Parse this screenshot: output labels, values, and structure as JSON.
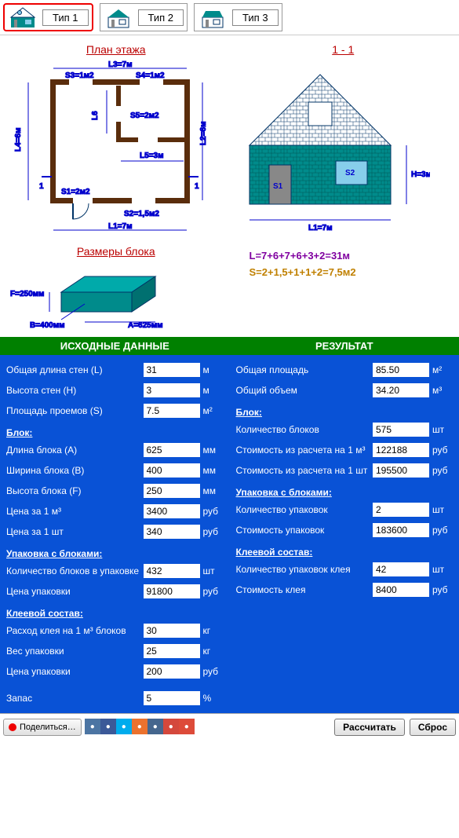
{
  "tabs": [
    {
      "label": "Тип 1",
      "active": true
    },
    {
      "label": "Тип 2",
      "active": false
    },
    {
      "label": "Тип 3",
      "active": false
    }
  ],
  "plan": {
    "title": "План этажа",
    "dims": {
      "L1": "L1=7м",
      "L2": "L2=6м",
      "L3": "L3=7м",
      "L4": "L4=6м",
      "L5": "L5=3м",
      "L6": "L6",
      "S1": "S1=2м2",
      "S2": "S2=1,5м2",
      "S3": "S3=1м2",
      "S4": "S4=1м2",
      "S5": "S5=2м2",
      "section": "1"
    }
  },
  "section": {
    "title": "1 - 1",
    "dims": {
      "L1": "L1=7м",
      "H": "H=3м",
      "S1": "S1",
      "S2": "S2"
    }
  },
  "block": {
    "title": "Размеры блока",
    "A": "A=625мм",
    "B": "B=400мм",
    "F": "F=250мм"
  },
  "formulas": {
    "L": "L=7+6+7+6+3+2=31м",
    "S": "S=2+1,5+1+1+2=7,5м2"
  },
  "input": {
    "title": "ИСХОДНЫЕ ДАННЫЕ",
    "rows": [
      {
        "label": "Общая длина стен (L)",
        "value": "31",
        "unit": "м"
      },
      {
        "label": "Высота стен (H)",
        "value": "3",
        "unit": "м"
      },
      {
        "label": "Площадь проемов (S)",
        "value": "7.5",
        "unit": "м²"
      }
    ],
    "block_head": "Блок:",
    "block_rows": [
      {
        "label": "Длина блока (A)",
        "value": "625",
        "unit": "мм"
      },
      {
        "label": "Ширина блока (B)",
        "value": "400",
        "unit": "мм"
      },
      {
        "label": "Высота блока (F)",
        "value": "250",
        "unit": "мм"
      },
      {
        "label": "Цена за 1 м³",
        "value": "3400",
        "unit": "руб"
      },
      {
        "label": "Цена за 1 шт",
        "value": "340",
        "unit": "руб"
      }
    ],
    "pack_head": "Упаковка с блоками:",
    "pack_rows": [
      {
        "label": "Количество блоков в упаковке",
        "value": "432",
        "unit": "шт"
      },
      {
        "label": "Цена упаковки",
        "value": "91800",
        "unit": "руб"
      }
    ],
    "glue_head": "Клеевой состав:",
    "glue_rows": [
      {
        "label": "Расход клея на 1 м³ блоков",
        "value": "30",
        "unit": "кг"
      },
      {
        "label": "Вес упаковки",
        "value": "25",
        "unit": "кг"
      },
      {
        "label": "Цена упаковки",
        "value": "200",
        "unit": "руб"
      }
    ],
    "reserve": {
      "label": "Запас",
      "value": "5",
      "unit": "%"
    }
  },
  "result": {
    "title": "РЕЗУЛЬТАТ",
    "rows": [
      {
        "label": "Общая площадь",
        "value": "85.50",
        "unit": "м²"
      },
      {
        "label": "Общий объем",
        "value": "34.20",
        "unit": "м³"
      }
    ],
    "block_head": "Блок:",
    "block_rows": [
      {
        "label": "Количество блоков",
        "value": "575",
        "unit": "шт"
      },
      {
        "label": "Стоимость из расчета на 1 м³",
        "value": "122188",
        "unit": "руб"
      },
      {
        "label": "Стоимость из расчета на 1 шт",
        "value": "195500",
        "unit": "руб"
      }
    ],
    "pack_head": "Упаковка с блоками:",
    "pack_rows": [
      {
        "label": "Количество упаковок",
        "value": "2",
        "unit": "шт"
      },
      {
        "label": "Стоимость упаковок",
        "value": "183600",
        "unit": "руб"
      }
    ],
    "glue_head": "Клеевой состав:",
    "glue_rows": [
      {
        "label": "Количество упаковок клея",
        "value": "42",
        "unit": "шт"
      },
      {
        "label": "Стоимость клея",
        "value": "8400",
        "unit": "руб"
      }
    ]
  },
  "bottom": {
    "share": "Поделиться…",
    "calc": "Рассчитать",
    "reset": "Сброс"
  },
  "social_colors": [
    "#4c75a3",
    "#3b5998",
    "#00aced",
    "#eb722e",
    "#45668e",
    "#d4483c",
    "#dd4b39"
  ],
  "colors": {
    "blue_bg": "#0952d6",
    "green": "#008000",
    "red": "#e00000",
    "teal": "#008b8b"
  }
}
